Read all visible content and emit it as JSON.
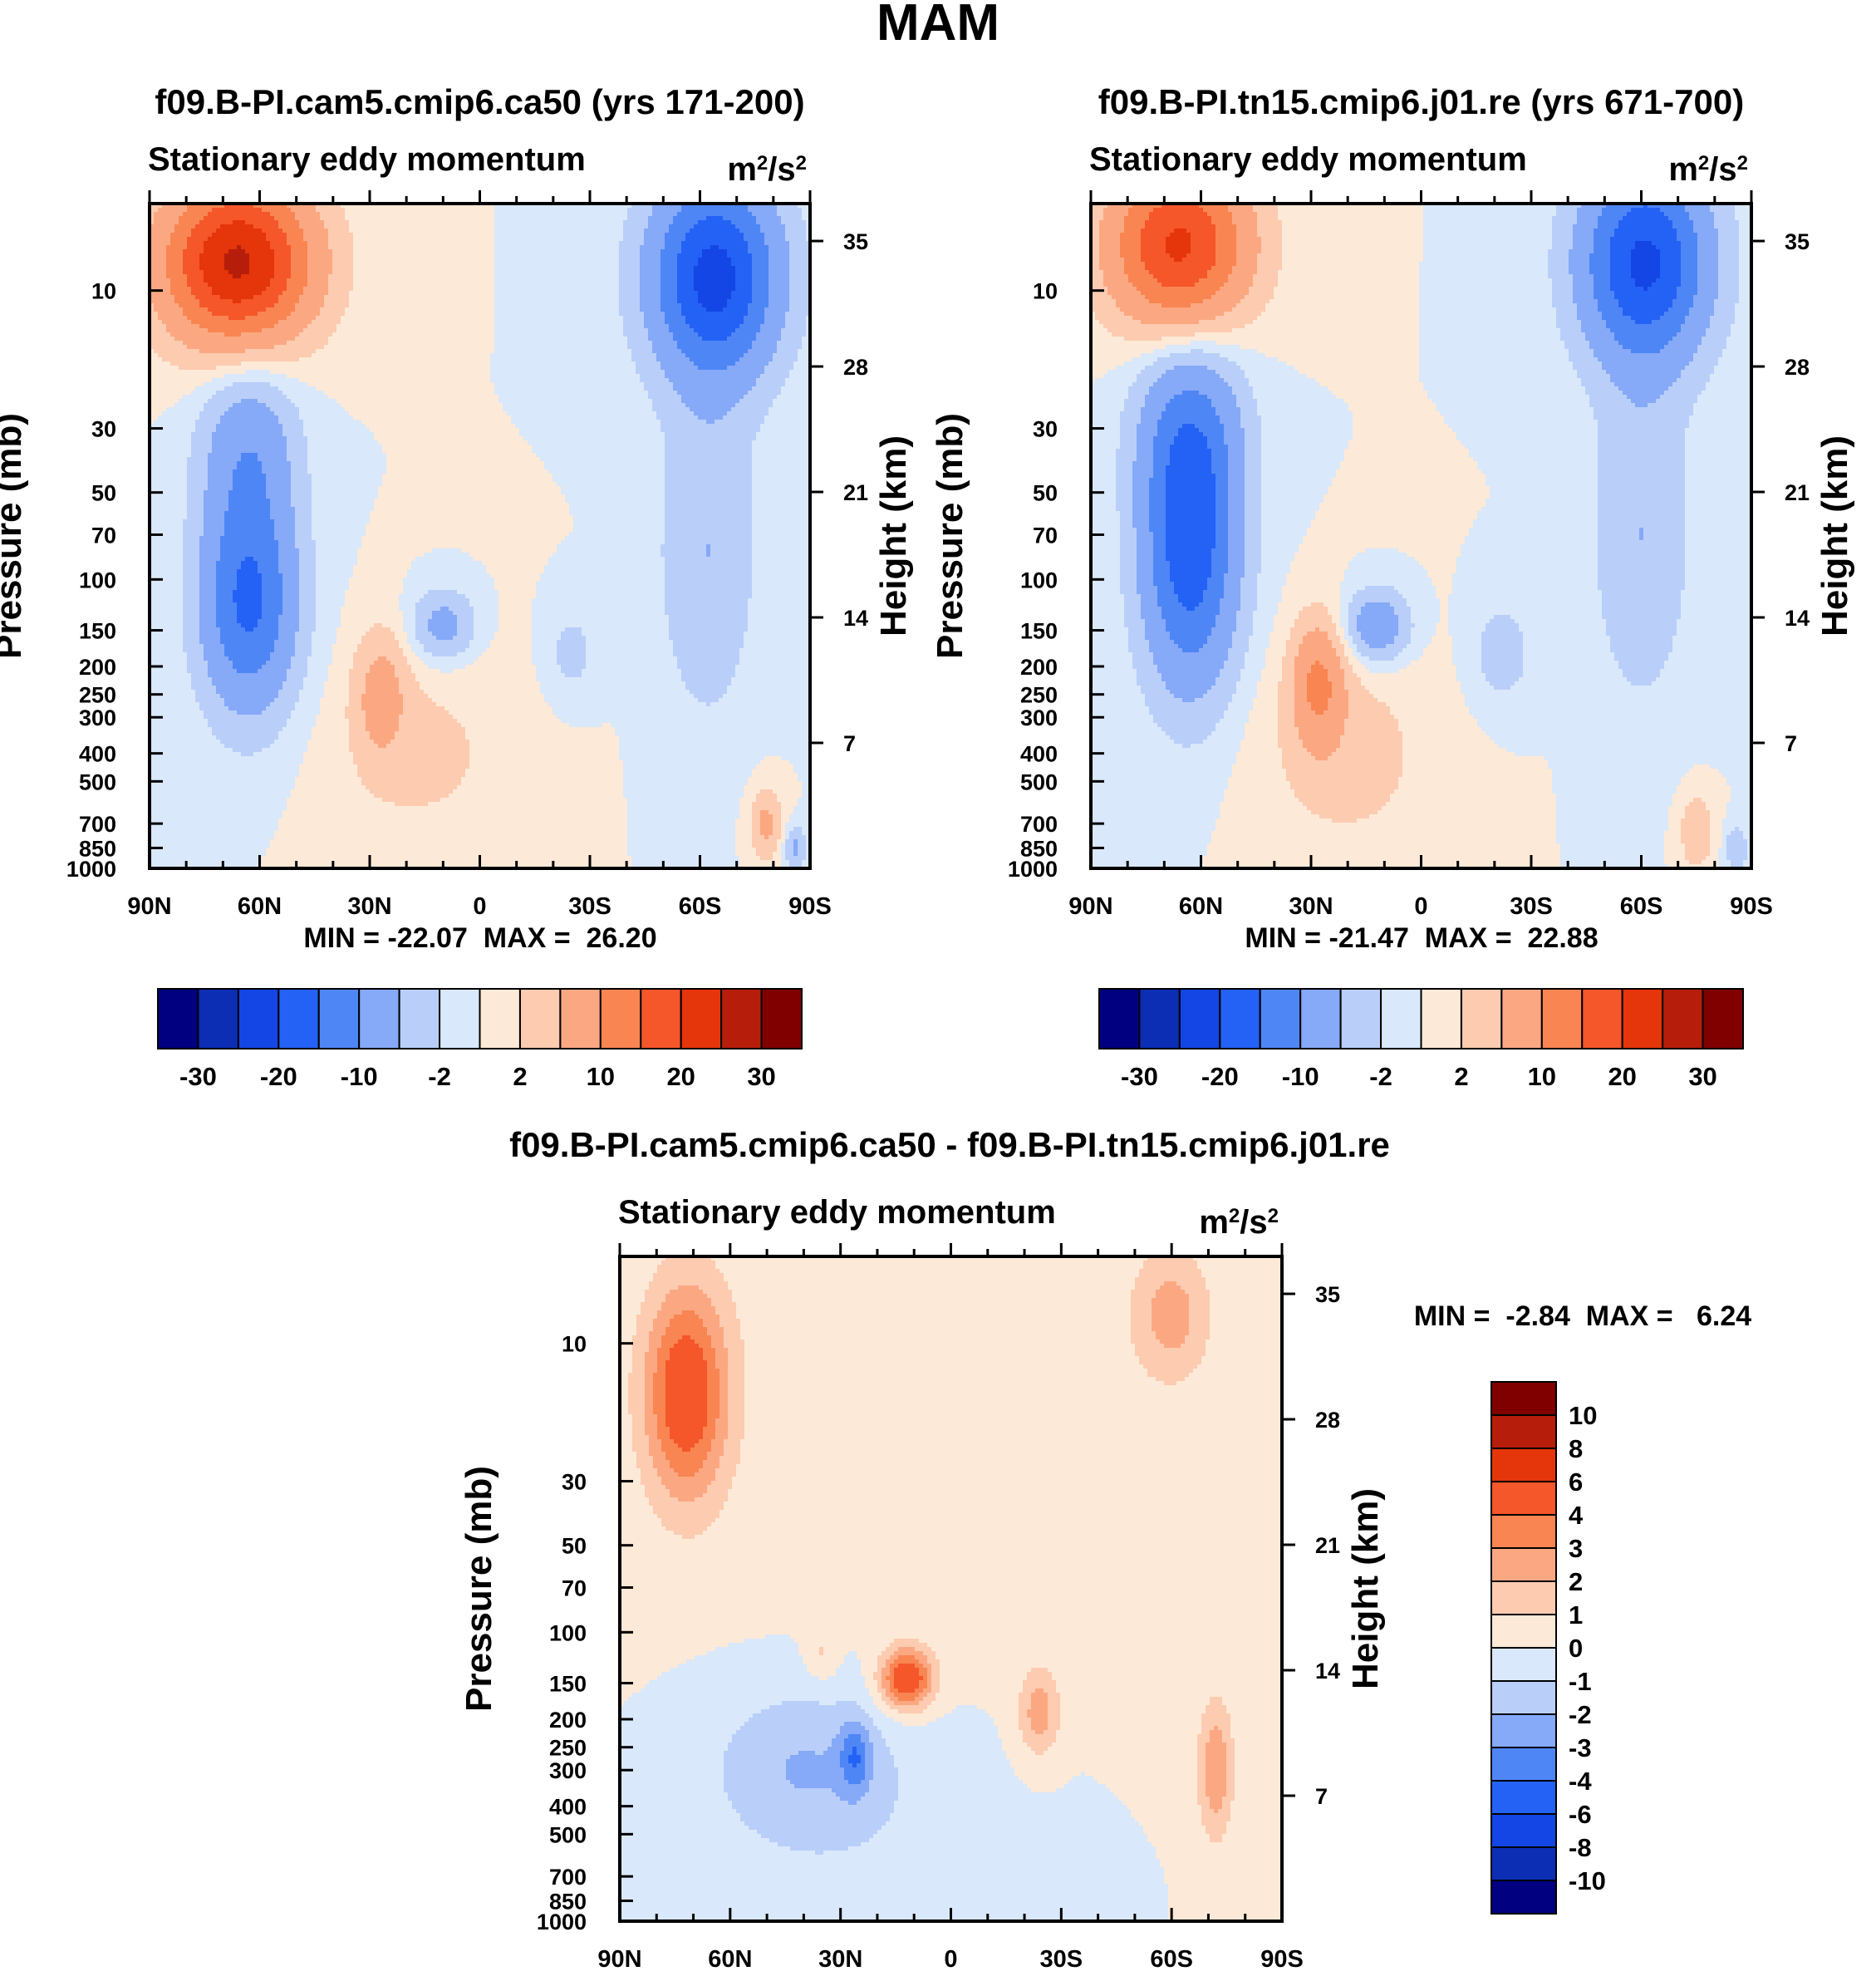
{
  "figure_title": "MAM",
  "chart_data": [
    {
      "type": "heatmap",
      "id": "panel1",
      "title": "f09.B-PI.cam5.cmip6.ca50 (yrs 171-200)",
      "subtitle": "Stationary eddy momentum",
      "units": "m²/s²",
      "xlabel": "",
      "ylabel": "Pressure (mb)",
      "ylabel_right": "Height (km)",
      "x_ticks": [
        "90N",
        "60N",
        "30N",
        "0",
        "30S",
        "60S",
        "90S"
      ],
      "x_range": [
        90,
        -90
      ],
      "y_ticks": [
        10,
        30,
        50,
        70,
        100,
        150,
        200,
        250,
        300,
        400,
        500,
        700,
        850,
        1000
      ],
      "y_range_mb": [
        1000,
        5
      ],
      "height_ticks_km": [
        7,
        14,
        21,
        28,
        35
      ],
      "min_label": "MIN = -22.07",
      "max_label": "MAX =  26.20",
      "min": -22.07,
      "max": 26.2,
      "levels": [
        -30,
        -25,
        -20,
        -15,
        -10,
        -5,
        -2,
        0,
        2,
        5,
        10,
        15,
        20,
        25,
        30
      ],
      "colorbar_labels": [
        "-30",
        "-20",
        "-10",
        "-2",
        "2",
        "10",
        "20",
        "30"
      ],
      "features": [
        {
          "lat": 66,
          "p": 8,
          "value": 26,
          "sx": 14,
          "sy": 0.45
        },
        {
          "lat": 63,
          "p": 120,
          "value": -16,
          "sx": 9,
          "sy": 0.6
        },
        {
          "lat": 63,
          "p": 35,
          "value": -8,
          "sx": 9,
          "sy": 0.5
        },
        {
          "lat": -64,
          "p": 9,
          "value": -22,
          "sx": 12,
          "sy": 0.55
        },
        {
          "lat": -62,
          "p": 80,
          "value": -5,
          "sx": 9,
          "sy": 0.9
        },
        {
          "lat": 27,
          "p": 250,
          "value": 6,
          "sx": 5,
          "sy": 0.35
        },
        {
          "lat": 15,
          "p": 400,
          "value": 2.5,
          "sx": 18,
          "sy": 0.6
        },
        {
          "lat": 10,
          "p": 145,
          "value": -7,
          "sx": 6,
          "sy": 0.2
        },
        {
          "lat": -25,
          "p": 180,
          "value": -3,
          "sx": 5,
          "sy": 0.25
        },
        {
          "lat": -78,
          "p": 700,
          "value": 6,
          "sx": 3,
          "sy": 0.2
        },
        {
          "lat": -86,
          "p": 850,
          "value": -6,
          "sx": 2,
          "sy": 0.12
        }
      ]
    },
    {
      "type": "heatmap",
      "id": "panel2",
      "title": "f09.B-PI.tn15.cmip6.j01.re (yrs 671-700)",
      "subtitle": "Stationary eddy momentum",
      "units": "m²/s²",
      "xlabel": "",
      "ylabel": "Pressure (mb)",
      "ylabel_right": "Height (km)",
      "x_ticks": [
        "90N",
        "60N",
        "30N",
        "0",
        "30S",
        "60S",
        "90S"
      ],
      "x_range": [
        90,
        -90
      ],
      "y_ticks": [
        10,
        30,
        50,
        70,
        100,
        150,
        200,
        250,
        300,
        400,
        500,
        700,
        850,
        1000
      ],
      "y_range_mb": [
        1000,
        5
      ],
      "height_ticks_km": [
        7,
        14,
        21,
        28,
        35
      ],
      "min_label": "MIN = -21.47",
      "max_label": "MAX =  22.88",
      "min": -21.47,
      "max": 22.88,
      "levels": [
        -30,
        -25,
        -20,
        -15,
        -10,
        -5,
        -2,
        0,
        2,
        5,
        10,
        15,
        20,
        25,
        30
      ],
      "colorbar_labels": [
        "-30",
        "-20",
        "-10",
        "-2",
        "2",
        "10",
        "20",
        "30"
      ],
      "features": [
        {
          "lat": 66,
          "p": 7,
          "value": 21,
          "sx": 13,
          "sy": 0.45
        },
        {
          "lat": 63,
          "p": 80,
          "value": -18,
          "sx": 9,
          "sy": 0.75
        },
        {
          "lat": 63,
          "p": 30,
          "value": -8,
          "sx": 10,
          "sy": 0.5
        },
        {
          "lat": -61,
          "p": 8,
          "value": -21,
          "sx": 12,
          "sy": 0.55
        },
        {
          "lat": -60,
          "p": 70,
          "value": -5,
          "sx": 9,
          "sy": 0.9
        },
        {
          "lat": 28,
          "p": 230,
          "value": 10,
          "sx": 5,
          "sy": 0.35
        },
        {
          "lat": 20,
          "p": 400,
          "value": 3,
          "sx": 17,
          "sy": 0.6
        },
        {
          "lat": 12,
          "p": 145,
          "value": -9,
          "sx": 6,
          "sy": 0.2
        },
        {
          "lat": -22,
          "p": 180,
          "value": -3.5,
          "sx": 6,
          "sy": 0.3
        },
        {
          "lat": -75,
          "p": 750,
          "value": 5,
          "sx": 3,
          "sy": 0.2
        },
        {
          "lat": -86,
          "p": 850,
          "value": -5,
          "sx": 2,
          "sy": 0.12
        }
      ]
    },
    {
      "type": "heatmap",
      "id": "panel3",
      "title": "f09.B-PI.cam5.cmip6.ca50 - f09.B-PI.tn15.cmip6.j01.re",
      "subtitle": "Stationary eddy momentum",
      "units": "m²/s²",
      "xlabel": "",
      "ylabel": "Pressure (mb)",
      "ylabel_right": "Height (km)",
      "x_ticks": [
        "90N",
        "60N",
        "30N",
        "0",
        "30S",
        "60S",
        "90S"
      ],
      "x_range": [
        90,
        -90
      ],
      "y_ticks": [
        10,
        30,
        50,
        70,
        100,
        150,
        200,
        250,
        300,
        400,
        500,
        700,
        850,
        1000
      ],
      "y_range_mb": [
        1000,
        5
      ],
      "height_ticks_km": [
        7,
        14,
        21,
        28,
        35
      ],
      "min_label": "MIN =  -2.84",
      "max_label": "MAX =   6.24",
      "min": -2.84,
      "max": 6.24,
      "levels": [
        -10,
        -8,
        -6,
        -4,
        -3,
        -2,
        -1,
        0,
        1,
        2,
        3,
        4,
        6,
        8,
        10
      ],
      "colorbar_labels": [
        "10",
        "8",
        "6",
        "4",
        "3",
        "2",
        "1",
        "0",
        "-1",
        "-2",
        "-3",
        "-4",
        "-6",
        "-8",
        "-10"
      ],
      "features": [
        {
          "lat": 72,
          "p": 15,
          "value": 5,
          "sx": 8,
          "sy": 0.6
        },
        {
          "lat": 0,
          "p": 10,
          "value": 0.6,
          "sx": 60,
          "sy": 1.6
        },
        {
          "lat": 12,
          "p": 145,
          "value": 5.5,
          "sx": 5,
          "sy": 0.17
        },
        {
          "lat": -24,
          "p": 190,
          "value": 2.5,
          "sx": 4,
          "sy": 0.25
        },
        {
          "lat": -72,
          "p": 300,
          "value": 2.8,
          "sx": 3.5,
          "sy": 0.4
        },
        {
          "lat": -60,
          "p": 8,
          "value": 2.2,
          "sx": 7,
          "sy": 0.35
        },
        {
          "lat": 40,
          "p": 280,
          "value": -1.8,
          "sx": 18,
          "sy": 0.45
        },
        {
          "lat": 26,
          "p": 270,
          "value": -2.6,
          "sx": 3,
          "sy": 0.2
        },
        {
          "lat": 25,
          "p": 500,
          "value": -0.6,
          "sx": 30,
          "sy": 0.6
        },
        {
          "lat": 35,
          "p": 120,
          "value": 1.2,
          "sx": 3,
          "sy": 0.15
        }
      ]
    }
  ]
}
